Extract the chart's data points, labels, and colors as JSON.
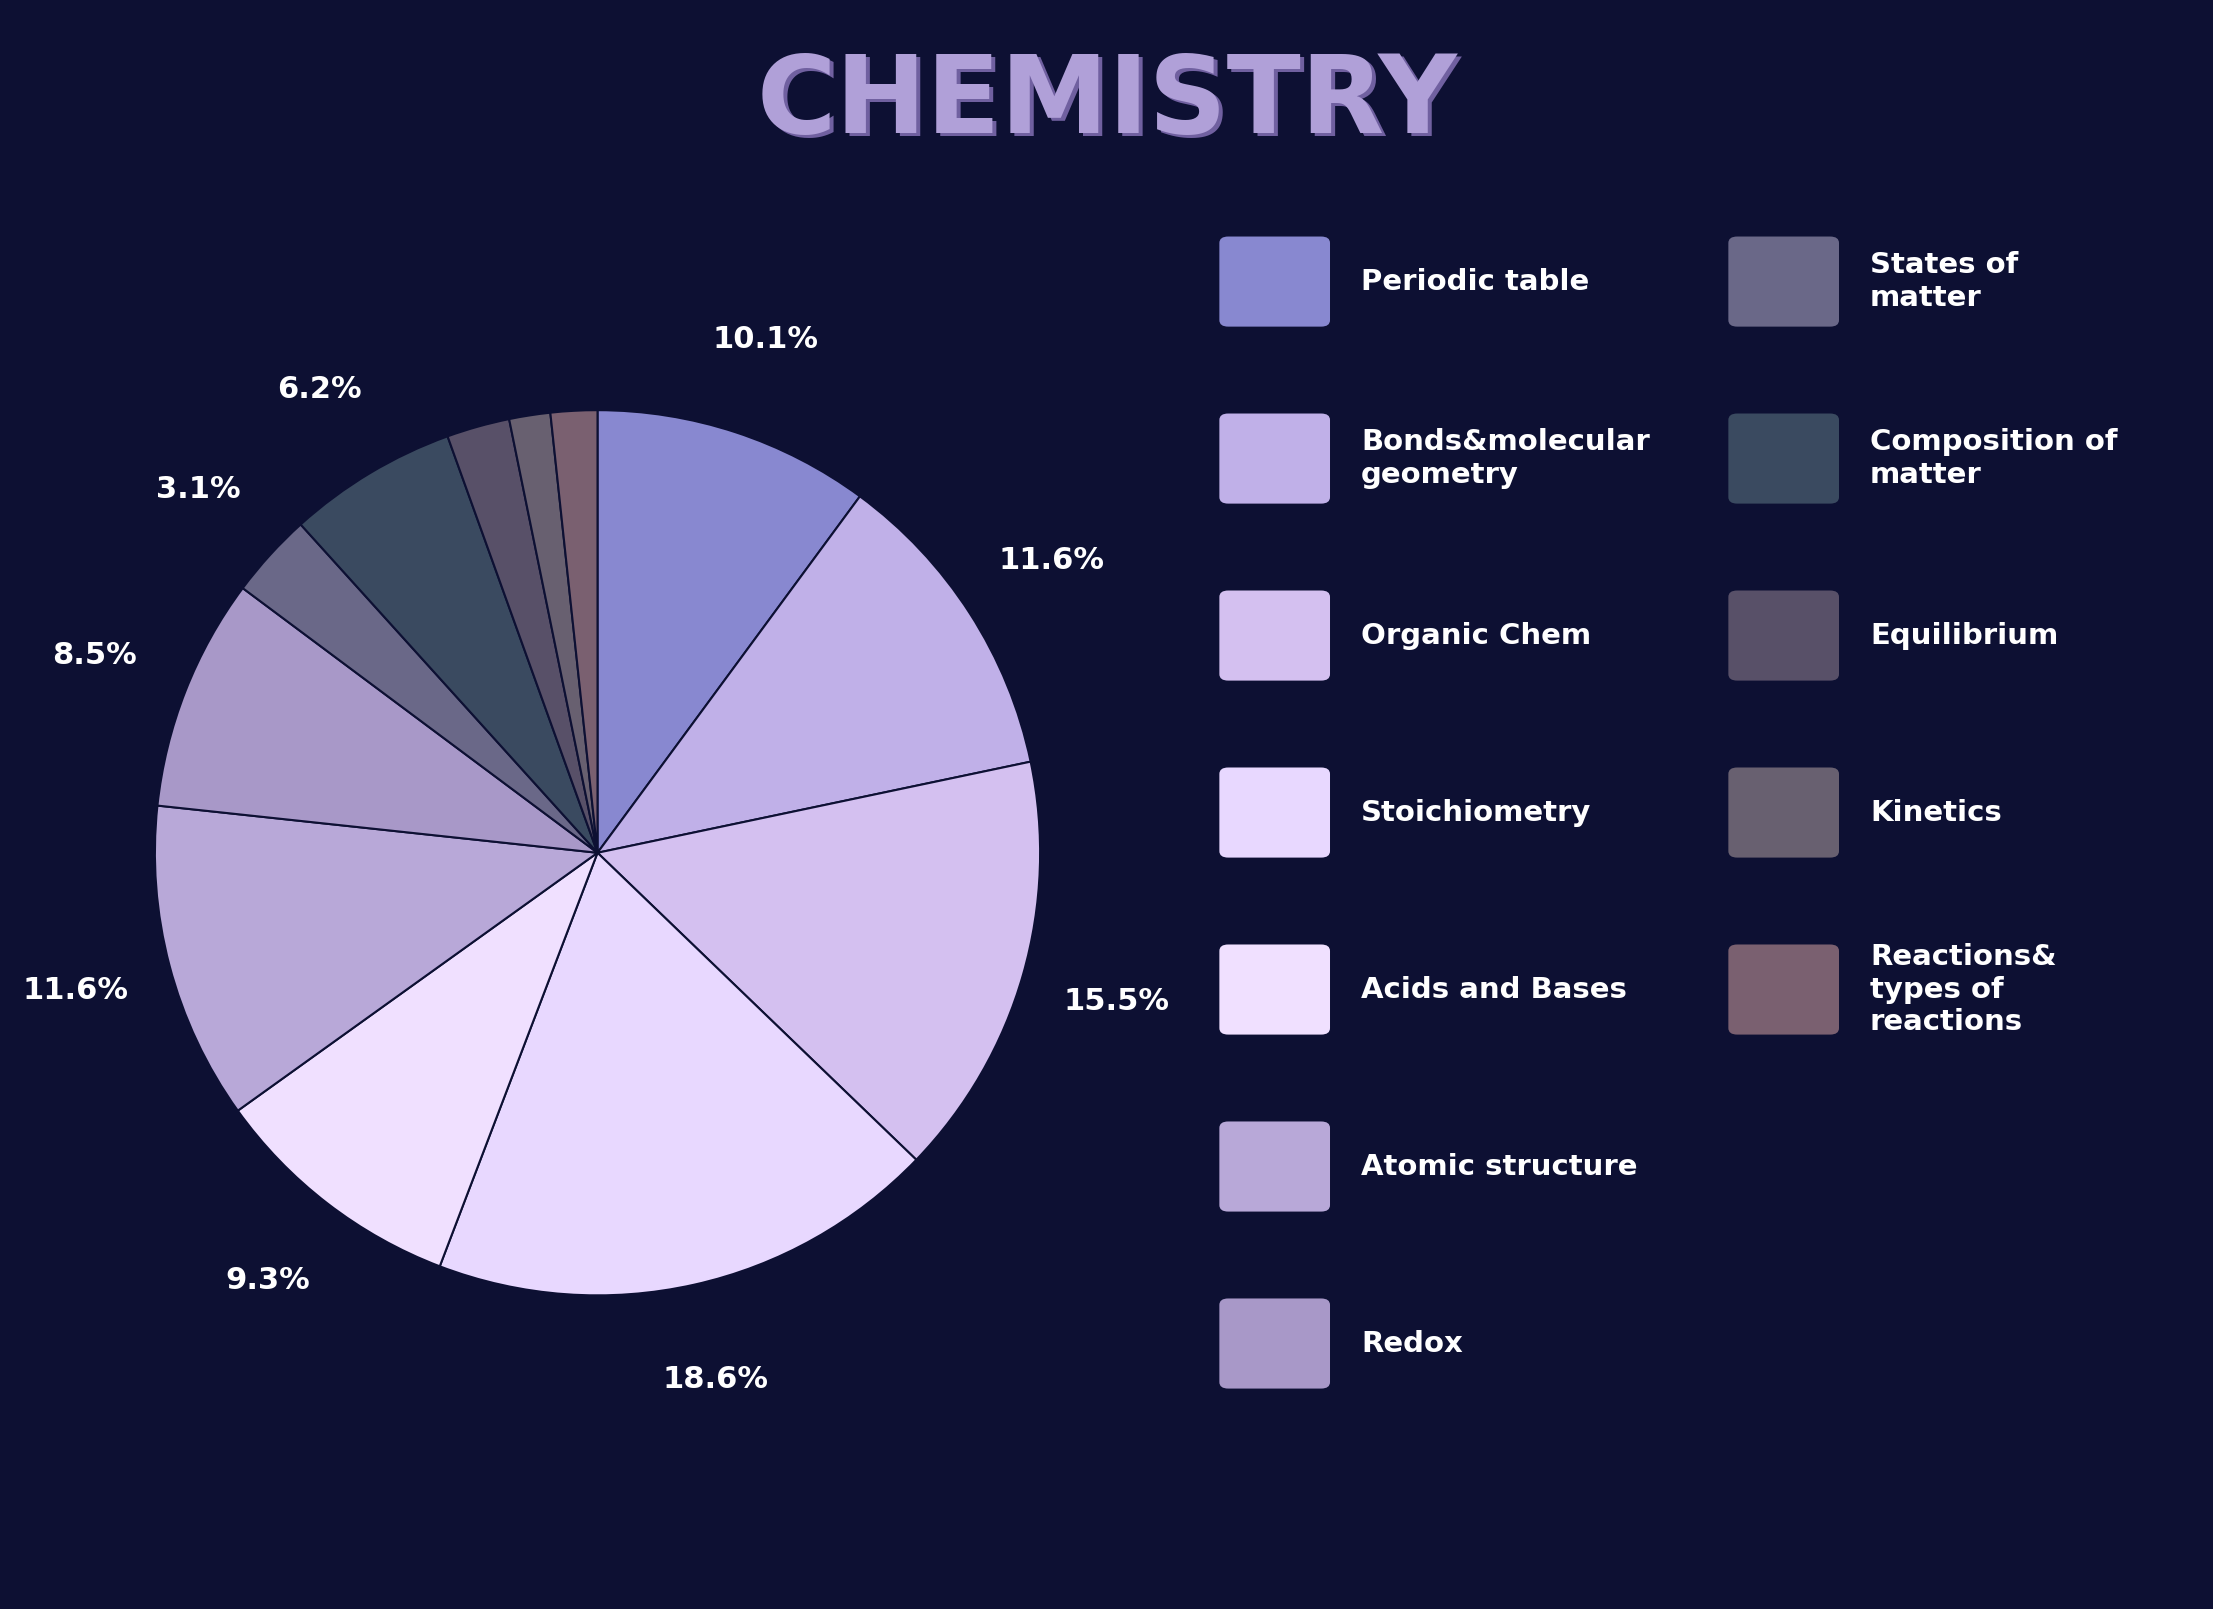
{
  "title": "CHEMISTRY",
  "title_color": "#9b8fc0",
  "background_color": "#0d1033",
  "values": [
    10.1,
    11.6,
    15.5,
    18.6,
    9.3,
    11.6,
    8.5,
    3.1,
    6.2,
    2.3,
    1.5,
    1.7
  ],
  "colors": [
    "#8888d0",
    "#c0b0e8",
    "#d4c0f0",
    "#e8d8ff",
    "#f0e0ff",
    "#b8a8d8",
    "#a898c8",
    "#6a6888",
    "#3a4a60",
    "#585068",
    "#686070",
    "#7a6070"
  ],
  "pct_labels": [
    "10.1%",
    "11.6%",
    "15.5%",
    "18.6%",
    "9.3%",
    "11.6%",
    "8.5%",
    "3.1%",
    "6.2%",
    "",
    "",
    ""
  ],
  "legend_left": [
    [
      "Periodic table",
      "#8888d0"
    ],
    [
      "Bonds&molecular\ngeometry",
      "#c0b0e8"
    ],
    [
      "Organic Chem",
      "#d4c0f0"
    ],
    [
      "Stoichiometry",
      "#e8d8ff"
    ],
    [
      "Acids and Bases",
      "#f0e0ff"
    ],
    [
      "Atomic structure",
      "#b8a8d8"
    ],
    [
      "Redox",
      "#a898c8"
    ]
  ],
  "legend_right": [
    [
      "States of\nmatter",
      "#6a6888"
    ],
    [
      "Composition of\nmatter",
      "#3a4a60"
    ],
    [
      "Equilibrium",
      "#585068"
    ],
    [
      "Kinetics",
      "#686070"
    ],
    [
      "Reactions&\ntypes of\nreactions",
      "#7a6070"
    ]
  ]
}
